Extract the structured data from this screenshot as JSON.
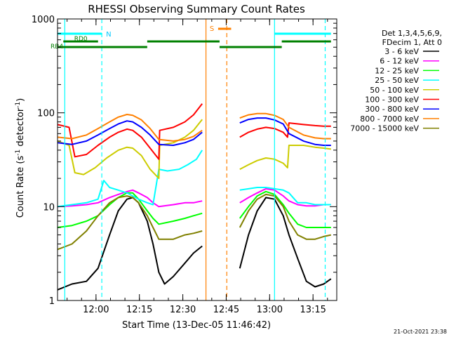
{
  "chart_data": {
    "type": "line",
    "title": "RHESSI Observing Summary Count Rates",
    "xlabel": "Start Time (13-Dec-05 11:46:42)",
    "ylabel_main": "Count Rate (s",
    "ylabel_sup1": "-1",
    "ylabel_mid": " detector",
    "ylabel_sup2": "-1",
    "ylabel_end": ")",
    "yscale": "log",
    "ylim": [
      1,
      1000
    ],
    "xlim_minutes": [
      0,
      96.5
    ],
    "y_ticks": [
      {
        "value": 1,
        "label": "1"
      },
      {
        "value": 10,
        "label": "10"
      },
      {
        "value": 100,
        "label": "100"
      },
      {
        "value": 1000,
        "label": "1000"
      }
    ],
    "x_ticks": [
      {
        "minute": 13.3,
        "label": "12:00"
      },
      {
        "minute": 28.3,
        "label": "12:15"
      },
      {
        "minute": 43.3,
        "label": "12:30"
      },
      {
        "minute": 58.3,
        "label": "12:45"
      },
      {
        "minute": 73.3,
        "label": "13:00"
      },
      {
        "minute": 88.3,
        "label": "13:15"
      }
    ],
    "legend_header": [
      "Det 1,3,4,5,6,9,",
      "FDecim 1, Att 0"
    ],
    "series": [
      {
        "name": "3 - 6 keV",
        "color": "#000000",
        "points": [
          [
            0,
            1.3
          ],
          [
            5,
            1.5
          ],
          [
            10,
            1.6
          ],
          [
            14,
            2.2
          ],
          [
            18,
            5
          ],
          [
            21,
            9
          ],
          [
            24,
            12
          ],
          [
            26,
            12.5
          ],
          [
            28,
            11
          ],
          [
            31,
            7
          ],
          [
            33,
            4
          ],
          [
            35,
            2
          ],
          [
            37,
            1.5
          ],
          [
            40,
            1.8
          ],
          [
            44,
            2.5
          ],
          [
            47,
            3.2
          ],
          [
            50,
            3.8
          ],
          [
            60,
            null
          ],
          [
            63,
            2.2
          ],
          [
            66,
            5
          ],
          [
            69,
            9
          ],
          [
            72,
            12.5
          ],
          [
            75,
            12
          ],
          [
            78,
            8
          ],
          [
            80,
            5
          ],
          [
            83,
            2.8
          ],
          [
            86,
            1.6
          ],
          [
            89,
            1.4
          ],
          [
            92,
            1.5
          ],
          [
            94.5,
            1.7
          ]
        ]
      },
      {
        "name": "6 - 12 keV",
        "color": "#ff00ff",
        "points": [
          [
            0,
            10
          ],
          [
            5,
            10.2
          ],
          [
            10,
            10.5
          ],
          [
            14,
            11
          ],
          [
            18,
            12.5
          ],
          [
            21,
            13.5
          ],
          [
            24,
            14.5
          ],
          [
            26,
            15
          ],
          [
            28,
            14
          ],
          [
            31,
            12.5
          ],
          [
            33,
            11
          ],
          [
            35,
            10
          ],
          [
            40,
            10.5
          ],
          [
            44,
            11
          ],
          [
            47,
            11
          ],
          [
            50,
            11.5
          ],
          [
            60,
            null
          ],
          [
            63,
            11
          ],
          [
            66,
            12.5
          ],
          [
            69,
            14
          ],
          [
            72,
            15.5
          ],
          [
            75,
            15
          ],
          [
            78,
            13
          ],
          [
            80,
            11.5
          ],
          [
            83,
            10.5
          ],
          [
            86,
            10.2
          ],
          [
            89,
            10.2
          ],
          [
            92,
            10.5
          ],
          [
            94.5,
            10.5
          ]
        ]
      },
      {
        "name": "12 - 25 keV",
        "color": "#00ff00",
        "points": [
          [
            0,
            6
          ],
          [
            5,
            6.3
          ],
          [
            10,
            7
          ],
          [
            14,
            8
          ],
          [
            18,
            10.5
          ],
          [
            21,
            12.5
          ],
          [
            24,
            14
          ],
          [
            26,
            14
          ],
          [
            28,
            12
          ],
          [
            31,
            9
          ],
          [
            33,
            7.5
          ],
          [
            35,
            6.5
          ],
          [
            40,
            7
          ],
          [
            44,
            7.5
          ],
          [
            47,
            8
          ],
          [
            50,
            8.5
          ],
          [
            60,
            null
          ],
          [
            63,
            7.5
          ],
          [
            66,
            10
          ],
          [
            69,
            13
          ],
          [
            72,
            14.5
          ],
          [
            75,
            13.5
          ],
          [
            78,
            10.5
          ],
          [
            80,
            8.5
          ],
          [
            83,
            6.5
          ],
          [
            86,
            6
          ],
          [
            89,
            6
          ],
          [
            92,
            6
          ],
          [
            94.5,
            6
          ]
        ]
      },
      {
        "name": "25 - 50 keV",
        "color": "#00ffff",
        "points": [
          [
            0,
            10
          ],
          [
            5,
            10.5
          ],
          [
            10,
            11
          ],
          [
            14,
            12
          ],
          [
            16,
            19
          ],
          [
            18,
            16
          ],
          [
            21,
            15
          ],
          [
            24,
            14
          ],
          [
            26,
            13
          ],
          [
            28,
            12
          ],
          [
            31,
            11
          ],
          [
            33,
            10.5
          ],
          [
            35,
            25
          ],
          [
            38,
            24
          ],
          [
            42,
            25
          ],
          [
            45,
            28
          ],
          [
            48,
            32
          ],
          [
            50,
            40
          ],
          [
            60,
            null
          ],
          [
            63,
            15
          ],
          [
            66,
            15.5
          ],
          [
            69,
            16
          ],
          [
            72,
            16
          ],
          [
            75,
            15.5
          ],
          [
            78,
            15
          ],
          [
            80,
            14
          ],
          [
            83,
            11
          ],
          [
            86,
            11
          ],
          [
            89,
            10.5
          ],
          [
            92,
            10.5
          ],
          [
            94.5,
            10.5
          ]
        ]
      },
      {
        "name": "50 - 100 keV",
        "color": "#cccc00",
        "points": [
          [
            0,
            50
          ],
          [
            4,
            45
          ],
          [
            6,
            23
          ],
          [
            9,
            22
          ],
          [
            13,
            26
          ],
          [
            17,
            33
          ],
          [
            21,
            40
          ],
          [
            24,
            43
          ],
          [
            26,
            42
          ],
          [
            29,
            35
          ],
          [
            32,
            25
          ],
          [
            35,
            20
          ],
          [
            35.3,
            45
          ],
          [
            40,
            48
          ],
          [
            44,
            55
          ],
          [
            47,
            65
          ],
          [
            50,
            85
          ],
          [
            60,
            null
          ],
          [
            63,
            25
          ],
          [
            66,
            28
          ],
          [
            69,
            31
          ],
          [
            72,
            33
          ],
          [
            75,
            32
          ],
          [
            78,
            29
          ],
          [
            79.5,
            26
          ],
          [
            80,
            45
          ],
          [
            85,
            45
          ],
          [
            89,
            43
          ],
          [
            92,
            42
          ],
          [
            94.5,
            41
          ]
        ]
      },
      {
        "name": "100 - 300 keV",
        "color": "#ff0000",
        "points": [
          [
            0,
            75
          ],
          [
            4,
            70
          ],
          [
            6,
            34
          ],
          [
            10,
            36
          ],
          [
            14,
            45
          ],
          [
            18,
            55
          ],
          [
            21,
            62
          ],
          [
            24,
            67
          ],
          [
            26,
            65
          ],
          [
            29,
            55
          ],
          [
            32,
            42
          ],
          [
            35,
            32
          ],
          [
            35.3,
            65
          ],
          [
            40,
            70
          ],
          [
            44,
            80
          ],
          [
            47,
            95
          ],
          [
            50,
            125
          ],
          [
            60,
            null
          ],
          [
            63,
            55
          ],
          [
            66,
            62
          ],
          [
            69,
            67
          ],
          [
            72,
            70
          ],
          [
            75,
            68
          ],
          [
            78,
            62
          ],
          [
            79.5,
            55
          ],
          [
            80,
            78
          ],
          [
            85,
            75
          ],
          [
            89,
            73
          ],
          [
            92,
            72
          ],
          [
            94.5,
            72
          ]
        ]
      },
      {
        "name": "300 - 800 keV",
        "color": "#0000ff",
        "points": [
          [
            0,
            48
          ],
          [
            5,
            46
          ],
          [
            10,
            50
          ],
          [
            14,
            58
          ],
          [
            18,
            68
          ],
          [
            21,
            76
          ],
          [
            24,
            82
          ],
          [
            26,
            80
          ],
          [
            29,
            70
          ],
          [
            32,
            58
          ],
          [
            35,
            46
          ],
          [
            40,
            45
          ],
          [
            44,
            48
          ],
          [
            47,
            52
          ],
          [
            50,
            62
          ],
          [
            60,
            null
          ],
          [
            63,
            78
          ],
          [
            66,
            85
          ],
          [
            69,
            88
          ],
          [
            72,
            88
          ],
          [
            75,
            84
          ],
          [
            78,
            76
          ],
          [
            80,
            60
          ],
          [
            85,
            50
          ],
          [
            89,
            46
          ],
          [
            92,
            45
          ],
          [
            94.5,
            45
          ]
        ]
      },
      {
        "name": "800 - 7000 keV",
        "color": "#ff8000",
        "points": [
          [
            0,
            55
          ],
          [
            5,
            53
          ],
          [
            10,
            58
          ],
          [
            14,
            68
          ],
          [
            18,
            80
          ],
          [
            21,
            90
          ],
          [
            24,
            96
          ],
          [
            26,
            94
          ],
          [
            29,
            84
          ],
          [
            32,
            68
          ],
          [
            35,
            52
          ],
          [
            40,
            50
          ],
          [
            44,
            52
          ],
          [
            47,
            56
          ],
          [
            50,
            65
          ],
          [
            60,
            null
          ],
          [
            63,
            88
          ],
          [
            66,
            95
          ],
          [
            69,
            98
          ],
          [
            72,
            98
          ],
          [
            75,
            94
          ],
          [
            78,
            85
          ],
          [
            80,
            70
          ],
          [
            85,
            58
          ],
          [
            89,
            54
          ],
          [
            92,
            53
          ],
          [
            94.5,
            53
          ]
        ]
      },
      {
        "name": "7000 - 15000 keV",
        "color": "#808000",
        "points": [
          [
            0,
            3.5
          ],
          [
            5,
            4
          ],
          [
            10,
            5.5
          ],
          [
            14,
            8
          ],
          [
            18,
            11
          ],
          [
            21,
            12.5
          ],
          [
            24,
            13
          ],
          [
            26,
            12.5
          ],
          [
            28,
            11
          ],
          [
            31,
            8
          ],
          [
            33,
            6
          ],
          [
            35,
            4.5
          ],
          [
            40,
            4.5
          ],
          [
            44,
            5
          ],
          [
            47,
            5.2
          ],
          [
            50,
            5.5
          ],
          [
            60,
            null
          ],
          [
            63,
            6
          ],
          [
            66,
            9
          ],
          [
            69,
            12
          ],
          [
            72,
            13.5
          ],
          [
            75,
            13
          ],
          [
            78,
            10
          ],
          [
            80,
            7
          ],
          [
            83,
            5
          ],
          [
            86,
            4.5
          ],
          [
            89,
            4.5
          ],
          [
            92,
            4.8
          ],
          [
            94.5,
            5
          ]
        ]
      }
    ],
    "markers": {
      "N_label": "N",
      "N_segments": [
        [
          0,
          15.3
        ],
        [
          75,
          94.5
        ]
      ],
      "S_label": "S",
      "S_segment": [
        55.5,
        60
      ],
      "RD0_label": "RD0",
      "RD0_segments": [
        [
          2,
          14
        ],
        [
          31,
          56
        ],
        [
          77.5,
          94.5
        ]
      ],
      "RB4_label": "RB4",
      "RB4_segments": [
        [
          0,
          31
        ],
        [
          56,
          77.5
        ]
      ],
      "vlines": [
        {
          "minute": 2.5,
          "color": "#00ffff",
          "style": "solid"
        },
        {
          "minute": 15.3,
          "color": "#00ffff",
          "style": "dashed"
        },
        {
          "minute": 51.3,
          "color": "#ff8000",
          "style": "solid"
        },
        {
          "minute": 58.5,
          "color": "#ff8000",
          "style": "dashed"
        },
        {
          "minute": 75,
          "color": "#00ffff",
          "style": "solid"
        },
        {
          "minute": 92.5,
          "color": "#00ffff",
          "style": "dashed"
        }
      ]
    },
    "timestamp": "21-Oct-2021 23:38"
  }
}
